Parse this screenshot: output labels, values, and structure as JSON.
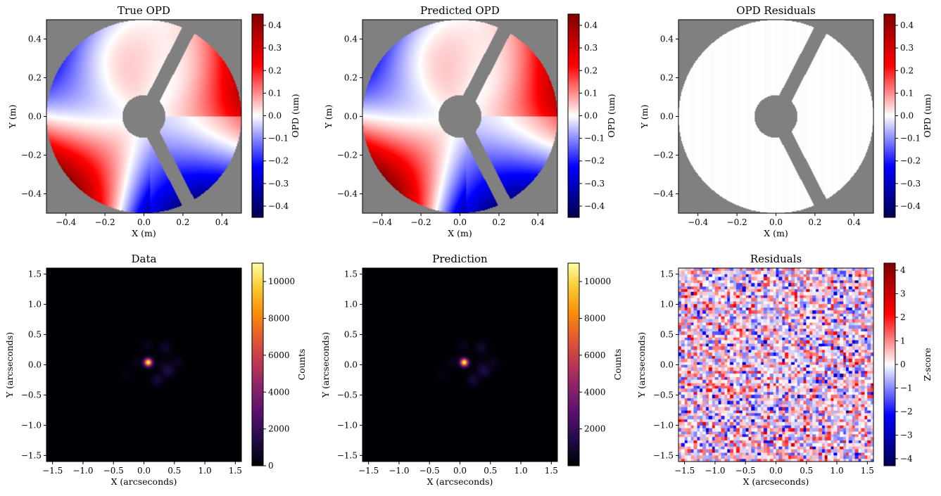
{
  "chart_data": [
    {
      "type": "heatmap",
      "title": "True OPD",
      "xlabel": "X (m)",
      "ylabel": "Y (m)",
      "colorbar_label": "OPD (um)",
      "colormap": "seismic",
      "xlim": [
        -0.5,
        0.5
      ],
      "ylim": [
        -0.5,
        0.5
      ],
      "clim": [
        -0.45,
        0.45
      ],
      "xticks": [
        "−0.4",
        "−0.2",
        "0.0",
        "0.2",
        "0.4"
      ],
      "xtick_values": [
        -0.4,
        -0.2,
        0.0,
        0.2,
        0.4
      ],
      "yticks": [
        "0.4",
        "0.2",
        "0.0",
        "−0.2",
        "−0.4"
      ],
      "ytick_values": [
        0.4,
        0.2,
        0.0,
        -0.2,
        -0.4
      ],
      "cticks": [
        "0.4",
        "0.3",
        "0.2",
        "0.1",
        "0.0",
        "−0.1",
        "−0.2",
        "−0.3",
        "−0.4"
      ],
      "ctick_values": [
        0.4,
        0.3,
        0.2,
        0.1,
        0.0,
        -0.1,
        -0.2,
        -0.3,
        -0.4
      ],
      "aperture": "circular pupil with central obscuration and three spider vanes",
      "background_color": "#808080"
    },
    {
      "type": "heatmap",
      "title": "Predicted OPD",
      "xlabel": "X (m)",
      "ylabel": "Y (m)",
      "colorbar_label": "OPD (um)",
      "colormap": "seismic",
      "xlim": [
        -0.5,
        0.5
      ],
      "ylim": [
        -0.5,
        0.5
      ],
      "clim": [
        -0.45,
        0.45
      ],
      "xticks": [
        "−0.4",
        "−0.2",
        "0.0",
        "0.2",
        "0.4"
      ],
      "xtick_values": [
        -0.4,
        -0.2,
        0.0,
        0.2,
        0.4
      ],
      "yticks": [
        "0.4",
        "0.2",
        "0.0",
        "−0.2",
        "−0.4"
      ],
      "ytick_values": [
        0.4,
        0.2,
        0.0,
        -0.2,
        -0.4
      ],
      "cticks": [
        "0.4",
        "0.3",
        "0.2",
        "0.1",
        "0.0",
        "−0.1",
        "−0.2",
        "−0.3",
        "−0.4"
      ],
      "ctick_values": [
        0.4,
        0.3,
        0.2,
        0.1,
        0.0,
        -0.1,
        -0.2,
        -0.3,
        -0.4
      ],
      "background_color": "#808080"
    },
    {
      "type": "heatmap",
      "title": "OPD Residuals",
      "xlabel": "X (m)",
      "ylabel": "Y (m)",
      "colorbar_label": "OPD (um)",
      "colormap": "seismic",
      "xlim": [
        -0.5,
        0.5
      ],
      "ylim": [
        -0.5,
        0.5
      ],
      "clim": [
        -0.45,
        0.45
      ],
      "xticks": [
        "−0.4",
        "−0.2",
        "0.0",
        "0.2",
        "0.4"
      ],
      "xtick_values": [
        -0.4,
        -0.2,
        0.0,
        0.2,
        0.4
      ],
      "yticks": [
        "0.4",
        "0.2",
        "0.0",
        "−0.2",
        "−0.4"
      ],
      "ytick_values": [
        0.4,
        0.2,
        0.0,
        -0.2,
        -0.4
      ],
      "cticks": [
        "0.4",
        "0.3",
        "0.2",
        "0.1",
        "0.0",
        "−0.1",
        "−0.2",
        "−0.3",
        "−0.4"
      ],
      "ctick_values": [
        0.4,
        0.3,
        0.2,
        0.1,
        0.0,
        -0.1,
        -0.2,
        -0.3,
        -0.4
      ],
      "residual_level": 0.0,
      "background_color": "#808080"
    },
    {
      "type": "heatmap",
      "title": "Data",
      "xlabel": "X (arcseconds)",
      "ylabel": "Y (arcseconds)",
      "colorbar_label": "Counts",
      "colormap": "inferno",
      "xlim": [
        -1.6,
        1.6
      ],
      "ylim": [
        -1.6,
        1.6
      ],
      "clim": [
        0,
        11000
      ],
      "peak_position": [
        0.07,
        0.04
      ],
      "peak_value": 11000,
      "xticks": [
        "−1.5",
        "−1.0",
        "−0.5",
        "0.0",
        "0.5",
        "1.0",
        "1.5"
      ],
      "xtick_values": [
        -1.5,
        -1.0,
        -0.5,
        0.0,
        0.5,
        1.0,
        1.5
      ],
      "yticks": [
        "1.5",
        "1.0",
        "0.5",
        "0.0",
        "−0.5",
        "−1.0",
        "−1.5"
      ],
      "ytick_values": [
        1.5,
        1.0,
        0.5,
        0.0,
        -0.5,
        -1.0,
        -1.5
      ],
      "cticks": [
        "10000",
        "8000",
        "6000",
        "4000",
        "2000",
        "0"
      ],
      "ctick_values": [
        10000,
        8000,
        6000,
        4000,
        2000,
        0
      ]
    },
    {
      "type": "heatmap",
      "title": "Prediction",
      "xlabel": "X (arcseconds)",
      "ylabel": "Y (arcseconds)",
      "colorbar_label": "Counts",
      "colormap": "inferno",
      "xlim": [
        -1.6,
        1.6
      ],
      "ylim": [
        -1.6,
        1.6
      ],
      "clim": [
        0,
        11000
      ],
      "peak_position": [
        0.07,
        0.04
      ],
      "peak_value": 11000,
      "xticks": [
        "−1.5",
        "−1.0",
        "−0.5",
        "0.0",
        "0.5",
        "1.0",
        "1.5"
      ],
      "xtick_values": [
        -1.5,
        -1.0,
        -0.5,
        0.0,
        0.5,
        1.0,
        1.5
      ],
      "yticks": [
        "1.5",
        "1.0",
        "0.5",
        "0.0",
        "−0.5",
        "−1.0",
        "−1.5"
      ],
      "ytick_values": [
        1.5,
        1.0,
        0.5,
        0.0,
        -0.5,
        -1.0,
        -1.5
      ],
      "cticks": [
        "10000",
        "8000",
        "6000",
        "4000",
        "2000"
      ],
      "ctick_values": [
        10000,
        8000,
        6000,
        4000,
        2000
      ]
    },
    {
      "type": "heatmap",
      "title": "Residuals",
      "xlabel": "X (arcseconds)",
      "ylabel": "Y (arcseconds)",
      "colorbar_label": "Z-score",
      "colormap": "seismic",
      "xlim": [
        -1.6,
        1.6
      ],
      "ylim": [
        -1.6,
        1.6
      ],
      "clim": [
        -4.3,
        4.3
      ],
      "grid_size": [
        64,
        64
      ],
      "distribution": "random z-scores",
      "xticks": [
        "−1.5",
        "−1.0",
        "−0.5",
        "0.0",
        "0.5",
        "1.0",
        "1.5"
      ],
      "xtick_values": [
        -1.5,
        -1.0,
        -0.5,
        0.0,
        0.5,
        1.0,
        1.5
      ],
      "yticks": [
        "1.5",
        "1.0",
        "0.5",
        "0.0",
        "−0.5",
        "−1.0",
        "−1.5"
      ],
      "ytick_values": [
        1.5,
        1.0,
        0.5,
        0.0,
        -0.5,
        -1.0,
        -1.5
      ],
      "cticks": [
        "4",
        "3",
        "2",
        "1",
        "0",
        "−1",
        "−2",
        "−3",
        "−4"
      ],
      "ctick_values": [
        4,
        3,
        2,
        1,
        0,
        -1,
        -2,
        -3,
        -4
      ]
    }
  ]
}
